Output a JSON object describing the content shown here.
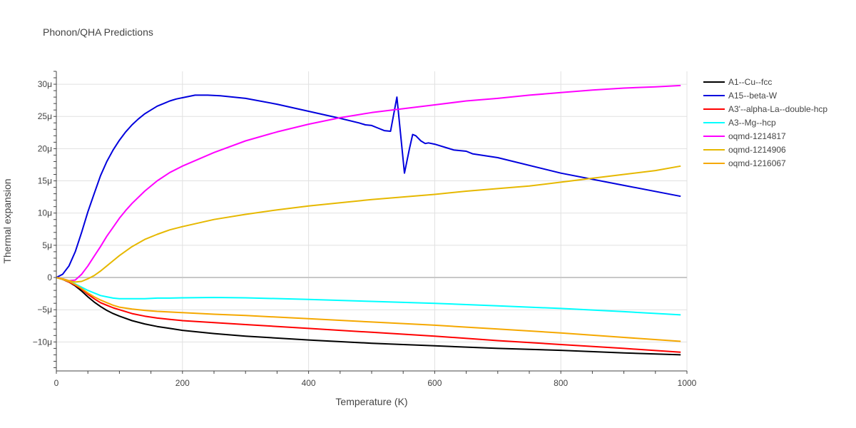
{
  "chart_data": {
    "type": "line",
    "title": "Phonon/QHA Predictions",
    "xlabel": "Temperature (K)",
    "ylabel": "Thermal expansion",
    "xlim": [
      0,
      1000
    ],
    "ylim": [
      -14.5,
      32
    ],
    "x_ticks": [
      0,
      200,
      400,
      600,
      800,
      1000
    ],
    "x_tick_labels": [
      "0",
      "200",
      "400",
      "600",
      "800",
      "1000"
    ],
    "y_ticks": [
      -10,
      -5,
      0,
      5,
      10,
      15,
      20,
      25,
      30
    ],
    "y_tick_labels": [
      "−10μ",
      "−5μ",
      "0",
      "5μ",
      "10μ",
      "15μ",
      "20μ",
      "25μ",
      "30μ"
    ],
    "grid": true,
    "legend_position": "top-right",
    "series": [
      {
        "name": "A1--Cu--fcc",
        "color": "#000000",
        "x": [
          0,
          10,
          20,
          30,
          40,
          50,
          60,
          70,
          80,
          90,
          100,
          120,
          140,
          160,
          180,
          200,
          250,
          300,
          400,
          500,
          600,
          700,
          800,
          900,
          990
        ],
        "y": [
          0,
          -0.3,
          -0.7,
          -1.3,
          -2.1,
          -3.0,
          -3.8,
          -4.5,
          -5.1,
          -5.6,
          -6.0,
          -6.7,
          -7.2,
          -7.6,
          -7.9,
          -8.2,
          -8.7,
          -9.1,
          -9.7,
          -10.2,
          -10.6,
          -11.0,
          -11.3,
          -11.7,
          -12.0
        ]
      },
      {
        "name": "A15--beta-W",
        "color": "#0000dd",
        "x": [
          0,
          10,
          20,
          30,
          40,
          50,
          60,
          70,
          80,
          90,
          100,
          110,
          120,
          130,
          140,
          150,
          160,
          170,
          180,
          190,
          200,
          220,
          240,
          260,
          300,
          350,
          400,
          450,
          480,
          490,
          500,
          510,
          520,
          530,
          540,
          552,
          560,
          565,
          570,
          578,
          585,
          590,
          600,
          620,
          630,
          650,
          660,
          700,
          800,
          900,
          990
        ],
        "y": [
          0,
          0.5,
          1.8,
          4.0,
          7.0,
          10.2,
          13.0,
          15.8,
          18.0,
          19.8,
          21.3,
          22.6,
          23.7,
          24.6,
          25.4,
          26.0,
          26.6,
          27.0,
          27.4,
          27.7,
          27.9,
          28.3,
          28.3,
          28.2,
          27.8,
          26.9,
          25.8,
          24.7,
          24.0,
          23.7,
          23.6,
          23.2,
          22.8,
          22.7,
          28.0,
          16.2,
          20.0,
          22.2,
          22.0,
          21.2,
          20.8,
          20.9,
          20.7,
          20.1,
          19.8,
          19.6,
          19.2,
          18.6,
          16.2,
          14.3,
          12.6
        ]
      },
      {
        "name": "A3'--alpha-La--double-hcp",
        "color": "#ff0000",
        "x": [
          0,
          10,
          20,
          30,
          40,
          50,
          60,
          70,
          80,
          90,
          100,
          120,
          140,
          160,
          180,
          200,
          250,
          300,
          400,
          500,
          600,
          700,
          800,
          900,
          990
        ],
        "y": [
          0,
          -0.3,
          -0.7,
          -1.2,
          -1.8,
          -2.6,
          -3.3,
          -3.9,
          -4.3,
          -4.7,
          -5.0,
          -5.6,
          -6.0,
          -6.3,
          -6.5,
          -6.7,
          -7.0,
          -7.3,
          -7.9,
          -8.5,
          -9.1,
          -9.8,
          -10.4,
          -11.0,
          -11.6
        ]
      },
      {
        "name": "A3--Mg--hcp",
        "color": "#00ffff",
        "x": [
          0,
          10,
          20,
          30,
          40,
          50,
          60,
          70,
          80,
          90,
          100,
          120,
          140,
          160,
          180,
          200,
          250,
          300,
          400,
          500,
          600,
          700,
          800,
          900,
          990
        ],
        "y": [
          0,
          -0.3,
          -0.6,
          -1.0,
          -1.5,
          -2.0,
          -2.4,
          -2.8,
          -3.0,
          -3.2,
          -3.3,
          -3.3,
          -3.3,
          -3.2,
          -3.2,
          -3.15,
          -3.1,
          -3.15,
          -3.4,
          -3.7,
          -4.0,
          -4.4,
          -4.8,
          -5.3,
          -5.8
        ]
      },
      {
        "name": "oqmd-1214817",
        "color": "#ff00ff",
        "x": [
          0,
          10,
          20,
          30,
          40,
          50,
          60,
          70,
          80,
          90,
          100,
          110,
          120,
          140,
          160,
          180,
          200,
          250,
          300,
          350,
          400,
          450,
          500,
          550,
          600,
          650,
          700,
          750,
          800,
          850,
          900,
          950,
          990
        ],
        "y": [
          0,
          -0.2,
          -0.5,
          -0.4,
          0.5,
          1.8,
          3.3,
          4.8,
          6.4,
          7.8,
          9.2,
          10.4,
          11.5,
          13.4,
          15.0,
          16.3,
          17.3,
          19.4,
          21.2,
          22.6,
          23.8,
          24.8,
          25.6,
          26.2,
          26.8,
          27.4,
          27.8,
          28.3,
          28.7,
          29.1,
          29.4,
          29.6,
          29.8
        ]
      },
      {
        "name": "oqmd-1214906",
        "color": "#e6b800",
        "x": [
          0,
          10,
          20,
          30,
          40,
          50,
          60,
          70,
          80,
          90,
          100,
          120,
          140,
          160,
          180,
          200,
          250,
          300,
          350,
          400,
          450,
          500,
          550,
          600,
          650,
          700,
          750,
          800,
          850,
          900,
          950,
          990
        ],
        "y": [
          0,
          -0.2,
          -0.5,
          -0.7,
          -0.6,
          -0.2,
          0.3,
          1.0,
          1.8,
          2.6,
          3.4,
          4.8,
          5.9,
          6.7,
          7.4,
          7.9,
          9.0,
          9.8,
          10.5,
          11.1,
          11.6,
          12.1,
          12.5,
          12.9,
          13.4,
          13.8,
          14.2,
          14.8,
          15.4,
          16.0,
          16.6,
          17.3
        ]
      },
      {
        "name": "oqmd-1216067",
        "color": "#f5a800",
        "x": [
          0,
          10,
          20,
          30,
          40,
          50,
          60,
          70,
          80,
          90,
          100,
          120,
          140,
          160,
          180,
          200,
          250,
          300,
          400,
          500,
          600,
          700,
          800,
          900,
          990
        ],
        "y": [
          0,
          -0.3,
          -0.6,
          -1.1,
          -1.7,
          -2.4,
          -3.0,
          -3.5,
          -3.9,
          -4.3,
          -4.6,
          -4.9,
          -5.1,
          -5.25,
          -5.35,
          -5.45,
          -5.7,
          -5.9,
          -6.4,
          -6.9,
          -7.4,
          -8.0,
          -8.6,
          -9.3,
          -9.9
        ]
      }
    ]
  }
}
